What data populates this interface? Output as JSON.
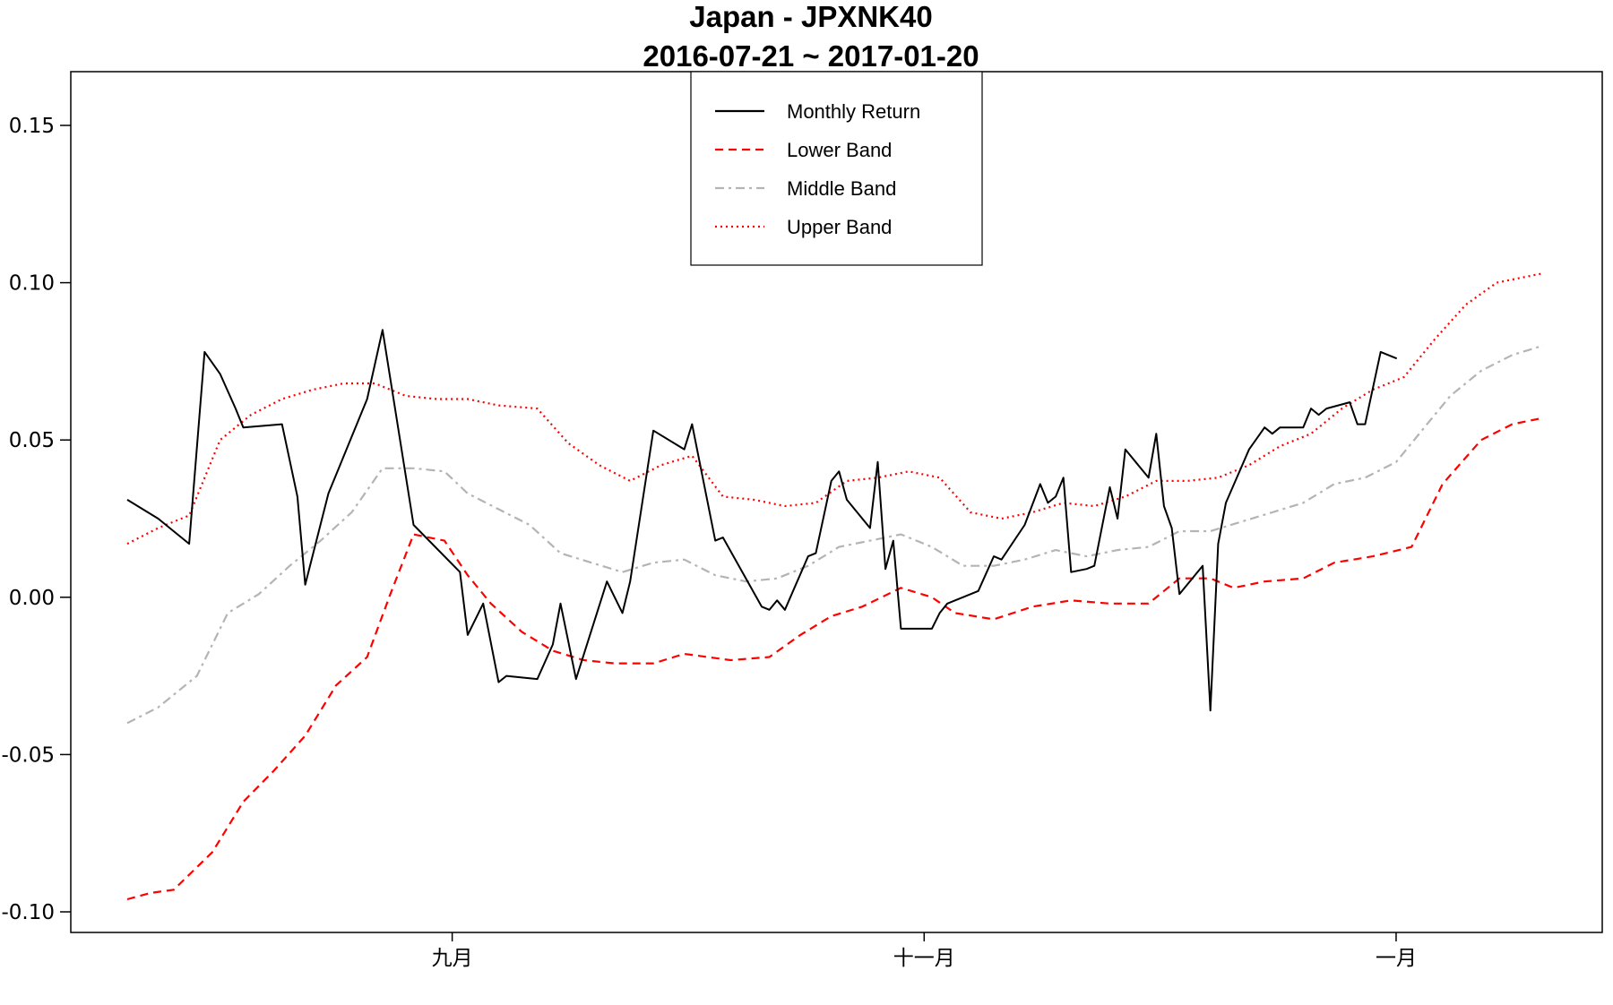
{
  "chart_data": {
    "type": "line",
    "title": "Japan - JPXNK40",
    "subtitle": "2016-07-21 ~ 2017-01-20",
    "xlabel": "",
    "ylabel": "",
    "xlim": [
      "2016-07-21",
      "2017-01-20"
    ],
    "ylim": [
      -0.1,
      0.155
    ],
    "y_ticks": [
      -0.1,
      -0.05,
      0.0,
      0.05,
      0.1,
      0.15
    ],
    "y_tick_labels": [
      "-0.10",
      "-0.05",
      "0.00",
      "0.05",
      "0.10",
      "0.15"
    ],
    "x_ticks": [
      {
        "date": "2016-09-01",
        "label": "九月"
      },
      {
        "date": "2016-11-01",
        "label": "十一月"
      },
      {
        "date": "2017-01-01",
        "label": "一月"
      }
    ],
    "grid": false,
    "legend": {
      "placement": "top-center",
      "entries": [
        {
          "name": "Monthly Return",
          "color": "#000000",
          "dash": "solid"
        },
        {
          "name": "Lower Band",
          "color": "#ff0000",
          "dash": "dashed"
        },
        {
          "name": "Middle Band",
          "color": "#b4b4b4",
          "dash": "dashdot"
        },
        {
          "name": "Upper Band",
          "color": "#ff0000",
          "dash": "dotted"
        }
      ]
    },
    "series": [
      {
        "name": "Monthly Return",
        "color": "#000000",
        "points": [
          [
            "2016-07-21",
            0.031
          ],
          [
            "2016-07-25",
            0.025
          ],
          [
            "2016-07-29",
            0.017
          ],
          [
            "2016-07-31",
            0.078
          ],
          [
            "2016-08-02",
            0.071
          ],
          [
            "2016-08-04",
            0.06
          ],
          [
            "2016-08-05",
            0.054
          ],
          [
            "2016-08-10",
            0.055
          ],
          [
            "2016-08-12",
            0.032
          ],
          [
            "2016-08-13",
            0.004
          ],
          [
            "2016-08-16",
            0.033
          ],
          [
            "2016-08-21",
            0.063
          ],
          [
            "2016-08-23",
            0.085
          ],
          [
            "2016-08-27",
            0.023
          ],
          [
            "2016-09-02",
            0.008
          ],
          [
            "2016-09-03",
            -0.012
          ],
          [
            "2016-09-05",
            -0.002
          ],
          [
            "2016-09-07",
            -0.027
          ],
          [
            "2016-09-08",
            -0.025
          ],
          [
            "2016-09-12",
            -0.026
          ],
          [
            "2016-09-14",
            -0.015
          ],
          [
            "2016-09-15",
            -0.002
          ],
          [
            "2016-09-17",
            -0.026
          ],
          [
            "2016-09-21",
            0.005
          ],
          [
            "2016-09-23",
            -0.005
          ],
          [
            "2016-09-24",
            0.005
          ],
          [
            "2016-09-27",
            0.053
          ],
          [
            "2016-10-01",
            0.047
          ],
          [
            "2016-10-02",
            0.055
          ],
          [
            "2016-10-05",
            0.018
          ],
          [
            "2016-10-06",
            0.019
          ],
          [
            "2016-10-11",
            -0.003
          ],
          [
            "2016-10-12",
            -0.004
          ],
          [
            "2016-10-13",
            -0.001
          ],
          [
            "2016-10-14",
            -0.004
          ],
          [
            "2016-10-17",
            0.013
          ],
          [
            "2016-10-18",
            0.014
          ],
          [
            "2016-10-20",
            0.037
          ],
          [
            "2016-10-21",
            0.04
          ],
          [
            "2016-10-22",
            0.031
          ],
          [
            "2016-10-25",
            0.022
          ],
          [
            "2016-10-26",
            0.043
          ],
          [
            "2016-10-27",
            0.009
          ],
          [
            "2016-10-28",
            0.018
          ],
          [
            "2016-10-29",
            -0.01
          ],
          [
            "2016-11-01",
            -0.01
          ],
          [
            "2016-11-02",
            -0.01
          ],
          [
            "2016-11-03",
            -0.005
          ],
          [
            "2016-11-04",
            -0.002
          ],
          [
            "2016-11-08",
            0.002
          ],
          [
            "2016-11-10",
            0.013
          ],
          [
            "2016-11-11",
            0.012
          ],
          [
            "2016-11-14",
            0.023
          ],
          [
            "2016-11-16",
            0.036
          ],
          [
            "2016-11-17",
            0.03
          ],
          [
            "2016-11-18",
            0.032
          ],
          [
            "2016-11-19",
            0.038
          ],
          [
            "2016-11-20",
            0.008
          ],
          [
            "2016-11-22",
            0.009
          ],
          [
            "2016-11-23",
            0.01
          ],
          [
            "2016-11-25",
            0.035
          ],
          [
            "2016-11-26",
            0.025
          ],
          [
            "2016-11-27",
            0.047
          ],
          [
            "2016-11-30",
            0.038
          ],
          [
            "2016-12-01",
            0.052
          ],
          [
            "2016-12-02",
            0.029
          ],
          [
            "2016-12-03",
            0.022
          ],
          [
            "2016-12-04",
            0.001
          ],
          [
            "2016-12-07",
            0.01
          ],
          [
            "2016-12-08",
            -0.036
          ],
          [
            "2016-12-09",
            0.017
          ],
          [
            "2016-12-10",
            0.03
          ],
          [
            "2016-12-13",
            0.047
          ],
          [
            "2016-12-15",
            0.054
          ],
          [
            "2016-12-16",
            0.052
          ],
          [
            "2016-12-17",
            0.054
          ],
          [
            "2016-12-20",
            0.054
          ],
          [
            "2016-12-21",
            0.06
          ],
          [
            "2016-12-22",
            0.058
          ],
          [
            "2016-12-23",
            0.06
          ],
          [
            "2016-12-26",
            0.062
          ],
          [
            "2016-12-27",
            0.055
          ],
          [
            "2016-12-28",
            0.055
          ],
          [
            "2016-12-30",
            0.078
          ],
          [
            "2017-01-01",
            0.076
          ],
          [
            "2016-12-31",
            0.077
          ]
        ]
      },
      {
        "name": "Lower Band",
        "color": "#ff0000",
        "points": [
          [
            "2016-07-21",
            -0.096
          ],
          [
            "2016-07-24",
            -0.094
          ],
          [
            "2016-07-27",
            -0.093
          ],
          [
            "2016-08-01",
            -0.081
          ],
          [
            "2016-08-05",
            -0.065
          ],
          [
            "2016-08-09",
            -0.055
          ],
          [
            "2016-08-13",
            -0.044
          ],
          [
            "2016-08-17",
            -0.028
          ],
          [
            "2016-08-21",
            -0.019
          ],
          [
            "2016-08-24",
            0.001
          ],
          [
            "2016-08-27",
            0.02
          ],
          [
            "2016-08-31",
            0.018
          ],
          [
            "2016-09-03",
            0.007
          ],
          [
            "2016-09-06",
            -0.002
          ],
          [
            "2016-09-10",
            -0.011
          ],
          [
            "2016-09-14",
            -0.017
          ],
          [
            "2016-09-18",
            -0.02
          ],
          [
            "2016-09-22",
            -0.021
          ],
          [
            "2016-09-27",
            -0.021
          ],
          [
            "2016-10-01",
            -0.018
          ],
          [
            "2016-10-07",
            -0.02
          ],
          [
            "2016-10-12",
            -0.019
          ],
          [
            "2016-10-16",
            -0.012
          ],
          [
            "2016-10-20",
            -0.006
          ],
          [
            "2016-10-24",
            -0.003
          ],
          [
            "2016-10-29",
            0.003
          ],
          [
            "2016-11-02",
            0.0
          ],
          [
            "2016-11-05",
            -0.005
          ],
          [
            "2016-11-10",
            -0.007
          ],
          [
            "2016-11-15",
            -0.003
          ],
          [
            "2016-11-20",
            -0.001
          ],
          [
            "2016-11-25",
            -0.002
          ],
          [
            "2016-11-30",
            -0.002
          ],
          [
            "2016-12-04",
            0.006
          ],
          [
            "2016-12-08",
            0.006
          ],
          [
            "2016-12-11",
            0.003
          ],
          [
            "2016-12-15",
            0.005
          ],
          [
            "2016-12-20",
            0.006
          ],
          [
            "2016-12-24",
            0.011
          ],
          [
            "2016-12-29",
            0.013
          ],
          [
            "2017-01-03",
            0.016
          ],
          [
            "2017-01-07",
            0.036
          ],
          [
            "2017-01-12",
            0.05
          ],
          [
            "2017-01-16",
            0.055
          ],
          [
            "2017-01-20",
            0.057
          ]
        ]
      },
      {
        "name": "Middle Band",
        "color": "#b4b4b4",
        "points": [
          [
            "2016-07-21",
            -0.04
          ],
          [
            "2016-07-25",
            -0.035
          ],
          [
            "2016-07-30",
            -0.025
          ],
          [
            "2016-08-03",
            -0.005
          ],
          [
            "2016-08-07",
            0.001
          ],
          [
            "2016-08-11",
            0.01
          ],
          [
            "2016-08-15",
            0.018
          ],
          [
            "2016-08-19",
            0.027
          ],
          [
            "2016-08-23",
            0.041
          ],
          [
            "2016-08-27",
            0.041
          ],
          [
            "2016-08-31",
            0.04
          ],
          [
            "2016-09-03",
            0.033
          ],
          [
            "2016-09-07",
            0.028
          ],
          [
            "2016-09-11",
            0.023
          ],
          [
            "2016-09-15",
            0.014
          ],
          [
            "2016-09-19",
            0.011
          ],
          [
            "2016-09-23",
            0.008
          ],
          [
            "2016-09-27",
            0.011
          ],
          [
            "2016-10-01",
            0.012
          ],
          [
            "2016-10-05",
            0.007
          ],
          [
            "2016-10-09",
            0.005
          ],
          [
            "2016-10-13",
            0.006
          ],
          [
            "2016-10-17",
            0.01
          ],
          [
            "2016-10-21",
            0.016
          ],
          [
            "2016-10-25",
            0.018
          ],
          [
            "2016-10-29",
            0.02
          ],
          [
            "2016-11-02",
            0.016
          ],
          [
            "2016-11-06",
            0.01
          ],
          [
            "2016-11-10",
            0.01
          ],
          [
            "2016-11-14",
            0.012
          ],
          [
            "2016-11-18",
            0.015
          ],
          [
            "2016-11-22",
            0.013
          ],
          [
            "2016-11-26",
            0.015
          ],
          [
            "2016-11-30",
            0.016
          ],
          [
            "2016-12-04",
            0.021
          ],
          [
            "2016-12-08",
            0.021
          ],
          [
            "2016-12-12",
            0.024
          ],
          [
            "2016-12-16",
            0.027
          ],
          [
            "2016-12-20",
            0.03
          ],
          [
            "2016-12-24",
            0.036
          ],
          [
            "2016-12-28",
            0.038
          ],
          [
            "2017-01-01",
            0.043
          ],
          [
            "2017-01-05",
            0.055
          ],
          [
            "2017-01-08",
            0.064
          ],
          [
            "2017-01-12",
            0.072
          ],
          [
            "2017-01-16",
            0.077
          ],
          [
            "2017-01-20",
            0.08
          ]
        ]
      },
      {
        "name": "Upper Band",
        "color": "#ff0000",
        "points": [
          [
            "2016-07-21",
            0.017
          ],
          [
            "2016-07-25",
            0.022
          ],
          [
            "2016-07-29",
            0.026
          ],
          [
            "2016-08-02",
            0.05
          ],
          [
            "2016-08-06",
            0.058
          ],
          [
            "2016-08-10",
            0.063
          ],
          [
            "2016-08-14",
            0.066
          ],
          [
            "2016-08-18",
            0.068
          ],
          [
            "2016-08-22",
            0.068
          ],
          [
            "2016-08-26",
            0.064
          ],
          [
            "2016-08-30",
            0.063
          ],
          [
            "2016-09-03",
            0.063
          ],
          [
            "2016-09-07",
            0.061
          ],
          [
            "2016-09-12",
            0.06
          ],
          [
            "2016-09-16",
            0.049
          ],
          [
            "2016-09-20",
            0.042
          ],
          [
            "2016-09-24",
            0.037
          ],
          [
            "2016-09-28",
            0.042
          ],
          [
            "2016-10-02",
            0.045
          ],
          [
            "2016-10-06",
            0.032
          ],
          [
            "2016-10-10",
            0.031
          ],
          [
            "2016-10-14",
            0.029
          ],
          [
            "2016-10-18",
            0.03
          ],
          [
            "2016-10-22",
            0.037
          ],
          [
            "2016-10-26",
            0.038
          ],
          [
            "2016-10-30",
            0.04
          ],
          [
            "2016-11-03",
            0.038
          ],
          [
            "2016-11-07",
            0.027
          ],
          [
            "2016-11-11",
            0.025
          ],
          [
            "2016-11-15",
            0.027
          ],
          [
            "2016-11-19",
            0.03
          ],
          [
            "2016-11-23",
            0.029
          ],
          [
            "2016-11-27",
            0.032
          ],
          [
            "2016-12-01",
            0.037
          ],
          [
            "2016-12-05",
            0.037
          ],
          [
            "2016-12-09",
            0.038
          ],
          [
            "2016-12-13",
            0.042
          ],
          [
            "2016-12-17",
            0.048
          ],
          [
            "2016-12-21",
            0.052
          ],
          [
            "2016-12-25",
            0.06
          ],
          [
            "2016-12-29",
            0.066
          ],
          [
            "2017-01-02",
            0.07
          ],
          [
            "2017-01-06",
            0.082
          ],
          [
            "2017-01-10",
            0.093
          ],
          [
            "2017-01-14",
            0.1
          ],
          [
            "2017-01-20",
            0.103
          ]
        ]
      }
    ]
  }
}
